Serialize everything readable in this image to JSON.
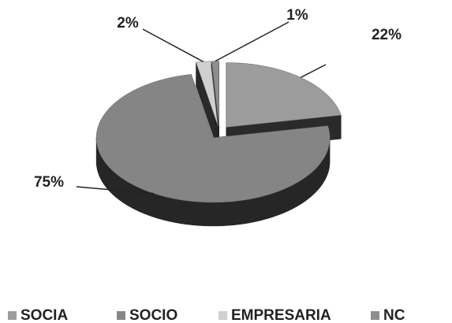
{
  "chart_data": {
    "type": "pie",
    "categories": [
      "SOCIA",
      "SOCIO",
      "EMPRESARIA",
      "NC"
    ],
    "values": [
      22,
      75,
      2,
      1
    ],
    "value_labels": [
      "22%",
      "75%",
      "2%",
      "1%"
    ],
    "colors": [
      "#9c9c9c",
      "#858585",
      "#d0d0d0",
      "#8e8e8e"
    ],
    "legend": "bottom"
  }
}
